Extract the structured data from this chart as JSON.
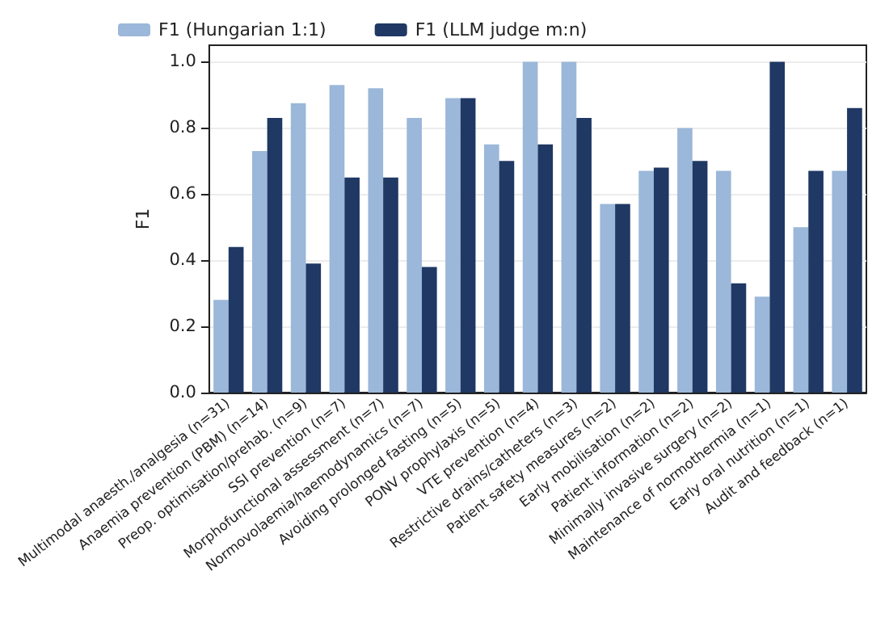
{
  "chart_data": {
    "type": "bar",
    "ylabel": "F1",
    "categories": [
      "Multimodal anaesth./analgesia (n=31)",
      "Anaemia prevention (PBM) (n=14)",
      "Preop. optimisation/prehab. (n=9)",
      "SSI prevention (n=7)",
      "Morphofunctional assessment (n=7)",
      "Normovolaemia/haemodynamics (n=7)",
      "Avoiding prolonged fasting (n=5)",
      "PONV prophylaxis (n=5)",
      "VTE prevention (n=4)",
      "Restrictive drains/catheters (n=3)",
      "Patient safety measures (n=2)",
      "Early mobilisation (n=2)",
      "Patient information (n=2)",
      "Minimally invasive surgery (n=2)",
      "Maintenance of normothermia (n=1)",
      "Early oral nutrition (n=1)",
      "Audit and feedback (n=1)"
    ],
    "series": [
      {
        "name": "F1 (Hungarian 1:1)",
        "color": "#9bb7d9",
        "values": [
          0.28,
          0.73,
          0.875,
          0.93,
          0.92,
          0.83,
          0.89,
          0.75,
          1.0,
          1.0,
          0.57,
          0.67,
          0.8,
          0.67,
          0.29,
          0.5,
          0.67
        ]
      },
      {
        "name": "F1 (LLM judge m:n)",
        "color": "#1f3864",
        "values": [
          0.44,
          0.83,
          0.39,
          0.65,
          0.65,
          0.38,
          0.89,
          0.7,
          0.75,
          0.83,
          0.57,
          0.68,
          0.7,
          0.33,
          1.0,
          0.67,
          0.86
        ]
      }
    ],
    "ylim": [
      0,
      1.05
    ],
    "yticks": [
      {
        "value": 0,
        "label": "0.0"
      },
      0.2,
      0.4,
      0.6,
      0.8,
      {
        "value": 1,
        "label": "1.0"
      }
    ],
    "grid": "y",
    "legend": "top left"
  }
}
